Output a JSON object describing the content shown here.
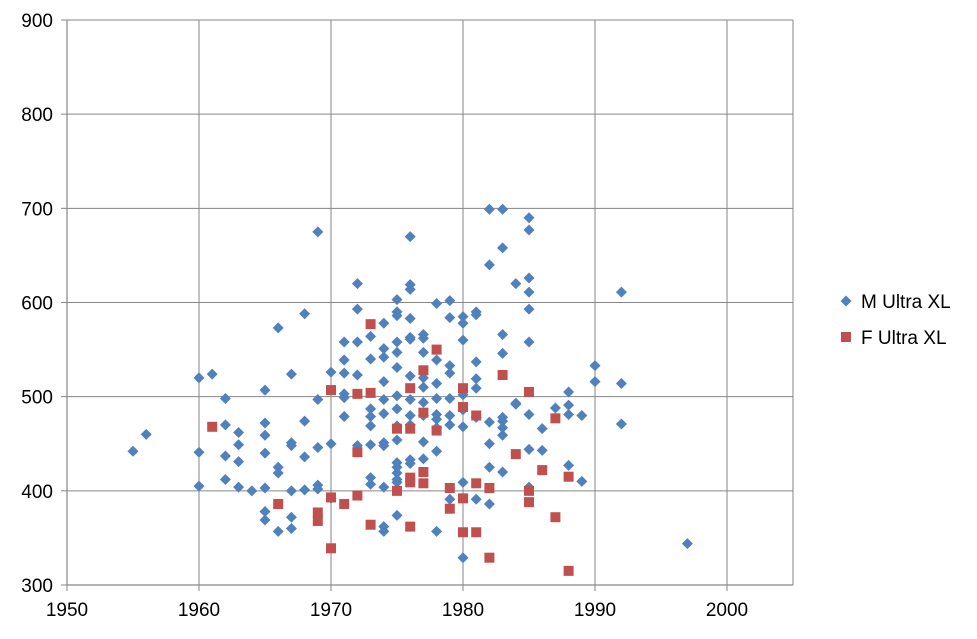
{
  "chart_data": {
    "type": "scatter",
    "title": "",
    "xlabel": "",
    "ylabel": "",
    "xlim": [
      1950,
      2005
    ],
    "ylim": [
      300,
      900
    ],
    "xticks": [
      1950,
      1960,
      1970,
      1980,
      1990,
      2000
    ],
    "yticks": [
      300,
      400,
      500,
      600,
      700,
      800,
      900
    ],
    "grid": true,
    "legend_position": "right",
    "series": [
      {
        "name": "M Ultra XL",
        "marker": "diamond",
        "color": "#4f81bd",
        "points": [
          [
            1955,
            442
          ],
          [
            1956,
            460
          ],
          [
            1960,
            520
          ],
          [
            1960,
            441
          ],
          [
            1960,
            405
          ],
          [
            1961,
            524
          ],
          [
            1962,
            498
          ],
          [
            1962,
            470
          ],
          [
            1962,
            437
          ],
          [
            1962,
            412
          ],
          [
            1963,
            462
          ],
          [
            1963,
            449
          ],
          [
            1963,
            431
          ],
          [
            1963,
            404
          ],
          [
            1964,
            400
          ],
          [
            1965,
            507
          ],
          [
            1965,
            472
          ],
          [
            1965,
            459
          ],
          [
            1965,
            440
          ],
          [
            1965,
            403
          ],
          [
            1965,
            378
          ],
          [
            1965,
            369
          ],
          [
            1966,
            573
          ],
          [
            1966,
            425
          ],
          [
            1966,
            419
          ],
          [
            1966,
            357
          ],
          [
            1967,
            524
          ],
          [
            1967,
            451
          ],
          [
            1967,
            448
          ],
          [
            1967,
            400
          ],
          [
            1967,
            372
          ],
          [
            1967,
            360
          ],
          [
            1968,
            588
          ],
          [
            1968,
            474
          ],
          [
            1968,
            436
          ],
          [
            1968,
            401
          ],
          [
            1969,
            675
          ],
          [
            1969,
            497
          ],
          [
            1969,
            446
          ],
          [
            1969,
            406
          ],
          [
            1969,
            402
          ],
          [
            1970,
            526
          ],
          [
            1970,
            450
          ],
          [
            1970,
            392
          ],
          [
            1971,
            558
          ],
          [
            1971,
            539
          ],
          [
            1971,
            525
          ],
          [
            1971,
            503
          ],
          [
            1971,
            499
          ],
          [
            1971,
            479
          ],
          [
            1972,
            620
          ],
          [
            1972,
            593
          ],
          [
            1972,
            558
          ],
          [
            1972,
            523
          ],
          [
            1972,
            448
          ],
          [
            1973,
            564
          ],
          [
            1973,
            540
          ],
          [
            1973,
            487
          ],
          [
            1973,
            479
          ],
          [
            1973,
            469
          ],
          [
            1973,
            449
          ],
          [
            1973,
            414
          ],
          [
            1973,
            407
          ],
          [
            1974,
            578
          ],
          [
            1974,
            551
          ],
          [
            1974,
            542
          ],
          [
            1974,
            516
          ],
          [
            1974,
            497
          ],
          [
            1974,
            482
          ],
          [
            1974,
            451
          ],
          [
            1974,
            448
          ],
          [
            1974,
            404
          ],
          [
            1974,
            362
          ],
          [
            1974,
            357
          ],
          [
            1975,
            603
          ],
          [
            1975,
            590
          ],
          [
            1975,
            586
          ],
          [
            1975,
            558
          ],
          [
            1975,
            547
          ],
          [
            1975,
            531
          ],
          [
            1975,
            501
          ],
          [
            1975,
            487
          ],
          [
            1975,
            469
          ],
          [
            1975,
            454
          ],
          [
            1975,
            430
          ],
          [
            1975,
            425
          ],
          [
            1975,
            419
          ],
          [
            1975,
            412
          ],
          [
            1975,
            409
          ],
          [
            1975,
            374
          ],
          [
            1976,
            670
          ],
          [
            1976,
            619
          ],
          [
            1976,
            614
          ],
          [
            1976,
            583
          ],
          [
            1976,
            563
          ],
          [
            1976,
            561
          ],
          [
            1976,
            522
          ],
          [
            1976,
            497
          ],
          [
            1976,
            480
          ],
          [
            1976,
            470
          ],
          [
            1976,
            433
          ],
          [
            1976,
            429
          ],
          [
            1977,
            566
          ],
          [
            1977,
            562
          ],
          [
            1977,
            547
          ],
          [
            1977,
            520
          ],
          [
            1977,
            510
          ],
          [
            1977,
            494
          ],
          [
            1977,
            480
          ],
          [
            1977,
            452
          ],
          [
            1977,
            434
          ],
          [
            1978,
            599
          ],
          [
            1978,
            539
          ],
          [
            1978,
            514
          ],
          [
            1978,
            498
          ],
          [
            1978,
            481
          ],
          [
            1978,
            476
          ],
          [
            1978,
            467
          ],
          [
            1978,
            442
          ],
          [
            1978,
            357
          ],
          [
            1979,
            602
          ],
          [
            1979,
            584
          ],
          [
            1979,
            533
          ],
          [
            1979,
            525
          ],
          [
            1979,
            498
          ],
          [
            1979,
            480
          ],
          [
            1979,
            470
          ],
          [
            1979,
            391
          ],
          [
            1980,
            585
          ],
          [
            1980,
            578
          ],
          [
            1980,
            560
          ],
          [
            1980,
            502
          ],
          [
            1980,
            486
          ],
          [
            1980,
            468
          ],
          [
            1980,
            409
          ],
          [
            1980,
            329
          ],
          [
            1981,
            590
          ],
          [
            1981,
            587
          ],
          [
            1981,
            537
          ],
          [
            1981,
            519
          ],
          [
            1981,
            509
          ],
          [
            1981,
            478
          ],
          [
            1981,
            391
          ],
          [
            1982,
            699
          ],
          [
            1982,
            640
          ],
          [
            1982,
            473
          ],
          [
            1982,
            450
          ],
          [
            1982,
            425
          ],
          [
            1982,
            386
          ],
          [
            1983,
            699
          ],
          [
            1983,
            658
          ],
          [
            1983,
            566
          ],
          [
            1983,
            546
          ],
          [
            1983,
            478
          ],
          [
            1983,
            474
          ],
          [
            1983,
            467
          ],
          [
            1983,
            459
          ],
          [
            1983,
            420
          ],
          [
            1984,
            620
          ],
          [
            1984,
            492
          ],
          [
            1984,
            493
          ],
          [
            1985,
            690
          ],
          [
            1985,
            677
          ],
          [
            1985,
            626
          ],
          [
            1985,
            611
          ],
          [
            1985,
            593
          ],
          [
            1985,
            558
          ],
          [
            1985,
            481
          ],
          [
            1985,
            444
          ],
          [
            1985,
            404
          ],
          [
            1986,
            466
          ],
          [
            1986,
            443
          ],
          [
            1987,
            488
          ],
          [
            1988,
            505
          ],
          [
            1988,
            481
          ],
          [
            1988,
            491
          ],
          [
            1988,
            427
          ],
          [
            1989,
            480
          ],
          [
            1989,
            410
          ],
          [
            1990,
            533
          ],
          [
            1990,
            516
          ],
          [
            1992,
            611
          ],
          [
            1992,
            514
          ],
          [
            1992,
            471
          ],
          [
            1997,
            344
          ]
        ]
      },
      {
        "name": "F Ultra XL",
        "marker": "square",
        "color": "#c0504d",
        "points": [
          [
            1961,
            468
          ],
          [
            1966,
            386
          ],
          [
            1969,
            377
          ],
          [
            1969,
            368
          ],
          [
            1970,
            507
          ],
          [
            1970,
            393
          ],
          [
            1970,
            339
          ],
          [
            1971,
            386
          ],
          [
            1972,
            503
          ],
          [
            1972,
            441
          ],
          [
            1972,
            395
          ],
          [
            1973,
            577
          ],
          [
            1973,
            504
          ],
          [
            1973,
            364
          ],
          [
            1975,
            466
          ],
          [
            1975,
            400
          ],
          [
            1976,
            509
          ],
          [
            1976,
            466
          ],
          [
            1976,
            414
          ],
          [
            1976,
            409
          ],
          [
            1976,
            362
          ],
          [
            1977,
            528
          ],
          [
            1977,
            483
          ],
          [
            1977,
            420
          ],
          [
            1977,
            408
          ],
          [
            1978,
            550
          ],
          [
            1978,
            464
          ],
          [
            1979,
            403
          ],
          [
            1979,
            381
          ],
          [
            1980,
            509
          ],
          [
            1980,
            489
          ],
          [
            1980,
            392
          ],
          [
            1980,
            356
          ],
          [
            1981,
            480
          ],
          [
            1981,
            408
          ],
          [
            1981,
            356
          ],
          [
            1982,
            403
          ],
          [
            1982,
            329
          ],
          [
            1983,
            523
          ],
          [
            1984,
            439
          ],
          [
            1985,
            505
          ],
          [
            1985,
            400
          ],
          [
            1985,
            388
          ],
          [
            1986,
            422
          ],
          [
            1987,
            477
          ],
          [
            1987,
            372
          ],
          [
            1988,
            415
          ],
          [
            1988,
            315
          ]
        ]
      }
    ]
  }
}
